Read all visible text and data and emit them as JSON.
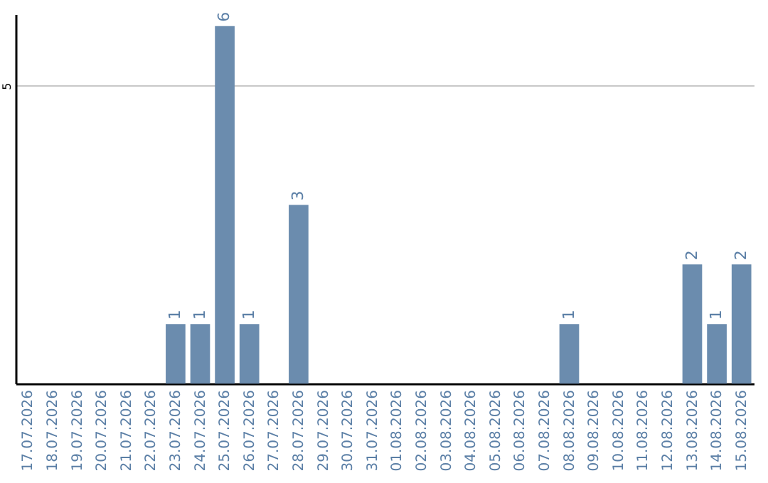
{
  "chart_data": {
    "type": "bar",
    "categories": [
      "17.07.2026",
      "18.07.2026",
      "19.07.2026",
      "20.07.2026",
      "21.07.2026",
      "22.07.2026",
      "23.07.2026",
      "24.07.2026",
      "25.07.2026",
      "26.07.2026",
      "27.07.2026",
      "28.07.2026",
      "29.07.2026",
      "30.07.2026",
      "31.07.2026",
      "01.08.2026",
      "02.08.2026",
      "03.08.2026",
      "04.08.2026",
      "05.08.2026",
      "06.08.2026",
      "07.08.2026",
      "08.08.2026",
      "09.08.2026",
      "10.08.2026",
      "11.08.2026",
      "12.08.2026",
      "13.08.2026",
      "14.08.2026",
      "15.08.2026"
    ],
    "values": [
      0,
      0,
      0,
      0,
      0,
      0,
      1,
      1,
      6,
      1,
      0,
      3,
      0,
      0,
      0,
      0,
      0,
      0,
      0,
      0,
      0,
      0,
      1,
      0,
      0,
      0,
      0,
      2,
      1,
      2
    ],
    "value_labels": [
      null,
      null,
      null,
      null,
      null,
      null,
      "1",
      "1",
      "6",
      "1",
      null,
      "3",
      null,
      null,
      null,
      null,
      null,
      null,
      null,
      null,
      null,
      null,
      "1",
      null,
      null,
      null,
      null,
      "2",
      "1",
      "2"
    ],
    "color": "#6b8cae",
    "ylim": [
      0,
      6.2
    ],
    "yticks": [
      5
    ],
    "grid": "y"
  }
}
